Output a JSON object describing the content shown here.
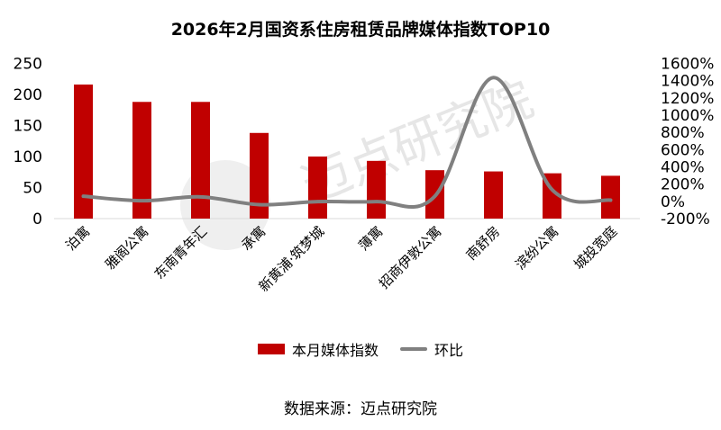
{
  "chart_data": {
    "type": "bar+line",
    "title": "2026年2月国资系住房租赁品牌媒体指数TOP10",
    "categories": [
      "泊寓",
      "雅阁公寓",
      "东南青年汇",
      "承寓",
      "新黄浦·筑梦城",
      "薄寓",
      "招商伊敦公寓",
      "南舒房",
      "滨纷公寓",
      "城投宽庭"
    ],
    "series": [
      {
        "name": "本月媒体指数",
        "type": "bar",
        "axis": "left",
        "color": "#C00000",
        "values": [
          216,
          188,
          188,
          138,
          100,
          93,
          78,
          76,
          73,
          69
        ]
      },
      {
        "name": "环比",
        "type": "line",
        "axis": "right",
        "color": "#808080",
        "values": [
          60,
          7,
          52,
          -38,
          -3,
          -3,
          60,
          1436,
          136,
          14
        ]
      }
    ],
    "left_axis": {
      "ylim": [
        0,
        250
      ],
      "ticks": [
        "0",
        "50",
        "100",
        "150",
        "200",
        "250"
      ]
    },
    "right_axis": {
      "ylim": [
        -200,
        1600
      ],
      "ticks": [
        "-200%",
        "0%",
        "200%",
        "400%",
        "600%",
        "800%",
        "1000%",
        "1200%",
        "1400%",
        "1600%"
      ]
    },
    "grid": false,
    "legend": "bottom"
  },
  "source": "数据来源：迈点研究院",
  "watermark": "迈点研究院 MEADIN ACADEMY"
}
